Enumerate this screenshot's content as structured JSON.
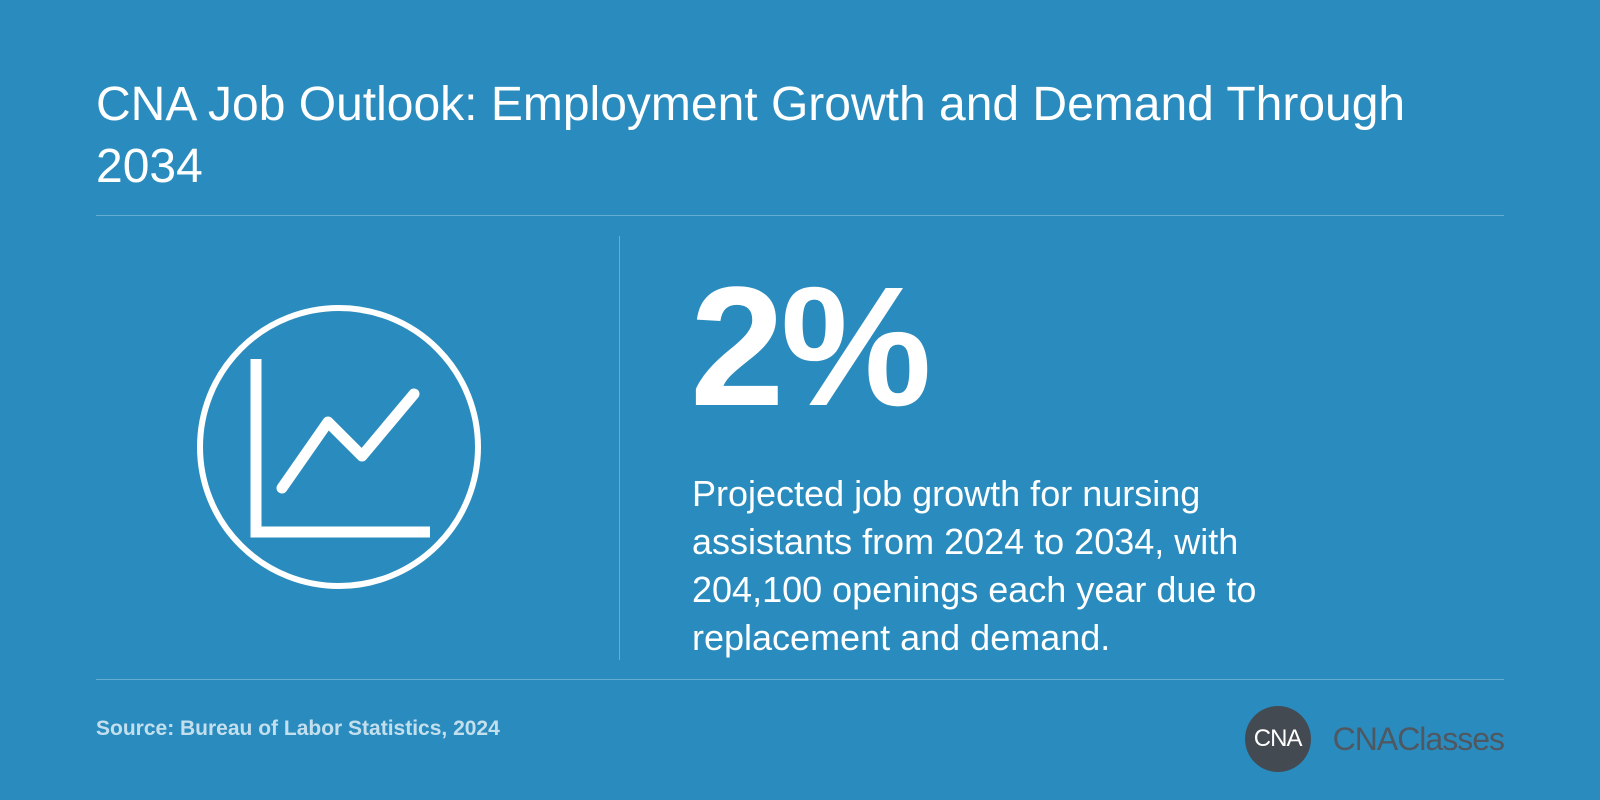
{
  "header": {
    "title": "CNA Job Outlook: Employment Growth and Demand Through 2034"
  },
  "stat": {
    "value": "2%",
    "description": "Projected job growth for nursing assistants from 2024 to 2034, with 204,100 openings each year due to replacement and demand.",
    "icon": "line-chart-icon"
  },
  "footer": {
    "source": "Source: Bureau of Labor Statistics, 2024",
    "brand_badge": "CNA",
    "brand_name": "CNAClasses"
  },
  "colors": {
    "background": "#2a8cbe",
    "text": "#ffffff",
    "brand_badge": "#444a52",
    "brand_text": "#4f5861"
  }
}
